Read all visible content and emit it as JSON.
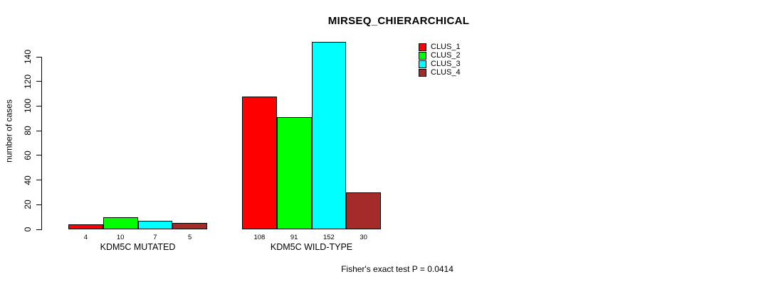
{
  "chart_data": {
    "type": "bar",
    "title": "MIRSEQ_CHIERARCHICAL",
    "ylabel": "number of cases",
    "xlabel": "",
    "categories": [
      "KDM5C MUTATED",
      "KDM5C WILD-TYPE"
    ],
    "series": [
      {
        "name": "CLUS_1",
        "color": "#FF0000",
        "values": [
          4,
          108
        ]
      },
      {
        "name": "CLUS_2",
        "color": "#00FF00",
        "values": [
          10,
          91
        ]
      },
      {
        "name": "CLUS_3",
        "color": "#00FFFF",
        "values": [
          7,
          152
        ]
      },
      {
        "name": "CLUS_4",
        "color": "#A52A2A",
        "values": [
          5,
          30
        ]
      }
    ],
    "yticks": [
      0,
      20,
      40,
      60,
      80,
      100,
      120,
      140
    ],
    "ylim": [
      0,
      140
    ],
    "grid": false,
    "legend_position": "top-right",
    "legend_entries": [
      "CLUS_1",
      "CLUS_2",
      "CLUS_3",
      "CLUS_4"
    ],
    "bar_border_color": "#000000",
    "value_labels_shown": true,
    "annotation": "Fisher's exact test P = 0.0414"
  }
}
